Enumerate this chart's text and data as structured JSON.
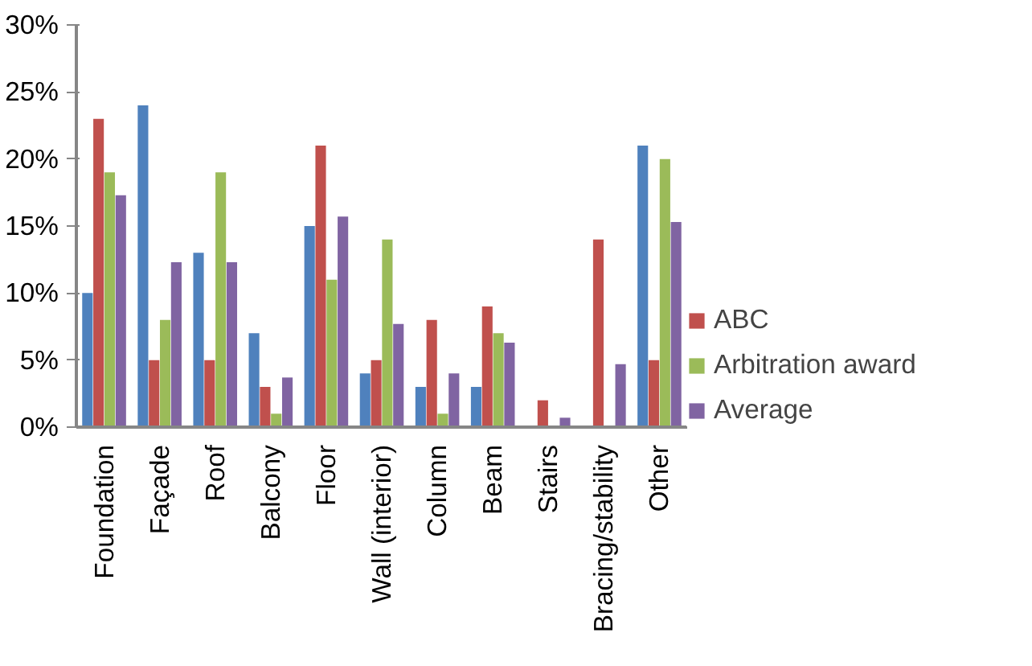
{
  "chart_data": {
    "type": "bar",
    "categories": [
      "Foundation",
      "Façade",
      "Roof",
      "Balcony",
      "Floor",
      "Wall (interior)",
      "Column",
      "Beam",
      "Stairs",
      "Bracing/stability",
      "Other"
    ],
    "series": [
      {
        "color": "#4f81bd",
        "values": [
          10,
          24,
          13,
          7,
          15,
          4,
          3,
          3,
          0,
          0,
          21
        ]
      },
      {
        "name": "ABC",
        "color": "#c0504d",
        "values": [
          23,
          5,
          5,
          3,
          21,
          5,
          8,
          9,
          2,
          14,
          5
        ]
      },
      {
        "name": "Arbitration award",
        "color": "#9bbb59",
        "values": [
          19,
          8,
          19,
          1,
          11,
          14,
          1,
          7,
          0,
          0,
          20
        ]
      },
      {
        "name": "Average",
        "color": "#8064a2",
        "values": [
          17.3,
          12.3,
          12.3,
          3.7,
          15.7,
          7.7,
          4,
          6.3,
          0.7,
          4.7,
          15.3
        ]
      }
    ],
    "ylim": [
      0,
      30
    ],
    "yticks": [
      {
        "value": 0,
        "label": "0%"
      },
      {
        "value": 5,
        "label": "5%"
      },
      {
        "value": 10,
        "label": "10%"
      },
      {
        "value": 15,
        "label": "15%"
      },
      {
        "value": 20,
        "label": "20%"
      },
      {
        "value": 25,
        "label": "25%"
      },
      {
        "value": 30,
        "label": "30%"
      }
    ],
    "grid": false,
    "legend": "right"
  }
}
